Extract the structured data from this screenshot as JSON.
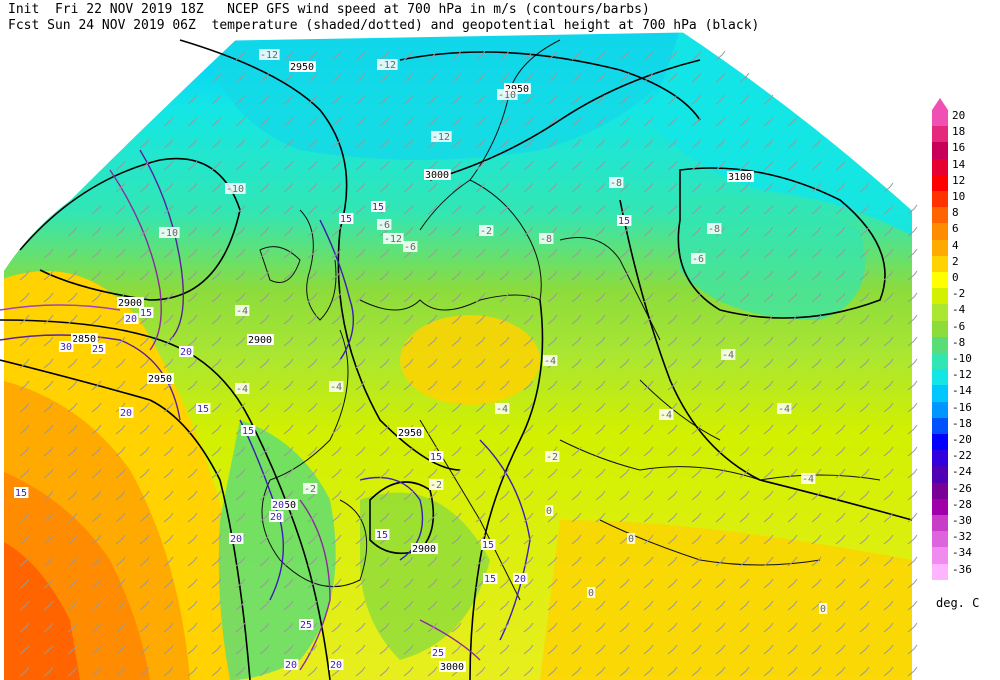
{
  "header": {
    "line1": "Init  Fri 22 NOV 2019 18Z   NCEP GFS wind speed at 700 hPa in m/s (contours/barbs)",
    "line2": "Fcst Sun 24 NOV 2019 06Z  temperature (shaded/dotted) and geopotential height at 700 hPa (black)"
  },
  "colorbar": {
    "units": "deg. C",
    "entries": [
      {
        "label": "20",
        "color": "#f050b4"
      },
      {
        "label": "18",
        "color": "#e6287d"
      },
      {
        "label": "16",
        "color": "#c8005a"
      },
      {
        "label": "14",
        "color": "#e60032"
      },
      {
        "label": "12",
        "color": "#ff0000"
      },
      {
        "label": "10",
        "color": "#ff3200"
      },
      {
        "label": "8",
        "color": "#ff6400"
      },
      {
        "label": "6",
        "color": "#ff8c00"
      },
      {
        "label": "4",
        "color": "#ffaa00"
      },
      {
        "label": "2",
        "color": "#ffd200"
      },
      {
        "label": "0",
        "color": "#ffff00"
      },
      {
        "label": "-2",
        "color": "#d2f000"
      },
      {
        "label": "-4",
        "color": "#aae632"
      },
      {
        "label": "-6",
        "color": "#8cdc3c"
      },
      {
        "label": "-8",
        "color": "#5adc78"
      },
      {
        "label": "-10",
        "color": "#32e6b4"
      },
      {
        "label": "-12",
        "color": "#14e6e6"
      },
      {
        "label": "-14",
        "color": "#00c8ff"
      },
      {
        "label": "-16",
        "color": "#0096ff"
      },
      {
        "label": "-18",
        "color": "#0050ff"
      },
      {
        "label": "-20",
        "color": "#0000ff"
      },
      {
        "label": "-22",
        "color": "#3200dc"
      },
      {
        "label": "-24",
        "color": "#5000b4"
      },
      {
        "label": "-26",
        "color": "#780096"
      },
      {
        "label": "-28",
        "color": "#a000aa"
      },
      {
        "label": "-30",
        "color": "#c83cc8"
      },
      {
        "label": "-32",
        "color": "#dc64dc"
      },
      {
        "label": "-34",
        "color": "#f08cf0"
      },
      {
        "label": "-36",
        "color": "#ffb4ff"
      }
    ]
  },
  "height_labels": [
    "2950",
    "2950",
    "3000",
    "3100",
    "2900",
    "2850",
    "2900",
    "2950",
    "2900",
    "2950",
    "3000",
    "2950"
  ],
  "wind_labels": [
    "15",
    "15",
    "15",
    "20",
    "15",
    "15",
    "25",
    "20",
    "15",
    "30",
    "20",
    "15",
    "20",
    "25",
    "20",
    "15",
    "15",
    "20",
    "25",
    "20",
    "20",
    "15",
    "20",
    "15"
  ],
  "temp_labels": [
    "-12",
    "-12",
    "-10",
    "-12",
    "-10",
    "-12",
    "-10",
    "-8",
    "-8",
    "-8",
    "-6",
    "-6",
    "-6",
    "-4",
    "-4",
    "-4",
    "-4",
    "-4",
    "-4",
    "-4",
    "-4",
    "-4",
    "-2",
    "0",
    "-2",
    "-2",
    "-2",
    "0",
    "0",
    "0"
  ]
}
